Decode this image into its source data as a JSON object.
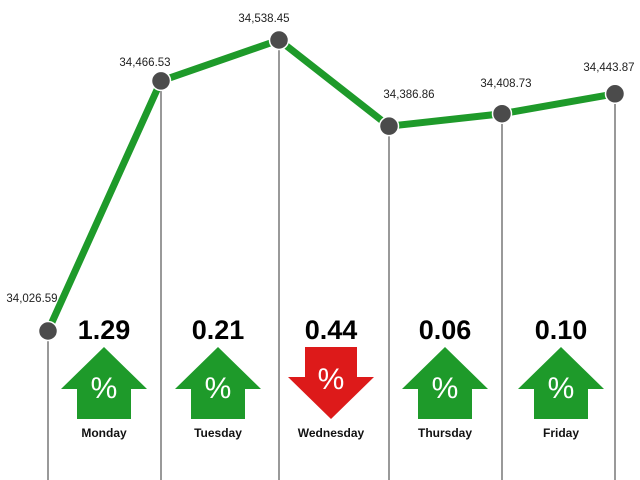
{
  "chart_data": {
    "type": "line",
    "title": "",
    "xlabel": "",
    "ylabel": "",
    "ylim": [
      33950,
      34560
    ],
    "grid": false,
    "points": [
      {
        "label": "",
        "value": 34026.59,
        "display": "34,026.59"
      },
      {
        "label": "Monday",
        "value": 34466.53,
        "display": "34,466.53"
      },
      {
        "label": "Tuesday",
        "value": 34538.45,
        "display": "34,538.45"
      },
      {
        "label": "Wednesday",
        "value": 34386.86,
        "display": "34,386.86"
      },
      {
        "label": "Thursday",
        "value": 34408.73,
        "display": "34,408.73"
      },
      {
        "label": "Friday",
        "value": 34443.87,
        "display": "34,443.87"
      }
    ],
    "daily_changes": [
      {
        "day": "Monday",
        "percent": "1.29",
        "direction": "up"
      },
      {
        "day": "Tuesday",
        "percent": "0.21",
        "direction": "up"
      },
      {
        "day": "Wednesday",
        "percent": "0.44",
        "direction": "down"
      },
      {
        "day": "Thursday",
        "percent": "0.06",
        "direction": "up"
      },
      {
        "day": "Friday",
        "percent": "0.10",
        "direction": "up"
      }
    ],
    "percent_symbol": "%"
  },
  "colors": {
    "line": "#1e9a2a",
    "up_arrow": "#1e9a2a",
    "down_arrow": "#dd1a1a",
    "marker": "#4b4b4b",
    "divider": "#333333"
  }
}
